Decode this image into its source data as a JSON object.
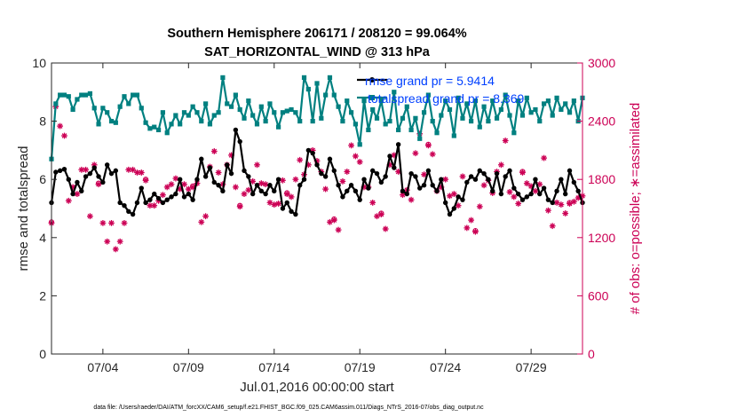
{
  "chart_data": {
    "type": "line",
    "title": "Southern Hemisphere 206171 / 208120 = 99.064%",
    "subtitle": "SAT_HORIZONTAL_WIND @ 313 hPa",
    "xlabel": "Jul.01,2016 00:00:00 start",
    "ylabel_left": "rmse and totalspread",
    "ylabel_right": "# of obs: o=possible; ∗=assimilated",
    "footer": "data file: /Users/raeder/DAI/ATM_forcXX/CAM6_setup/f.e21.FHIST_BGC.f09_025.CAM6assim.011/Diags_NTrS_2016-07/obs_diag_output.nc",
    "x_range": [
      1,
      32
    ],
    "ylim_left": [
      0,
      10
    ],
    "ylim_right": [
      0,
      3000
    ],
    "grid": false,
    "legend_position": "top-right",
    "x_ticks": [
      {
        "day": 4,
        "label": "07/04"
      },
      {
        "day": 9,
        "label": "07/09"
      },
      {
        "day": 14,
        "label": "07/14"
      },
      {
        "day": 19,
        "label": "07/19"
      },
      {
        "day": 24,
        "label": "07/24"
      },
      {
        "day": 29,
        "label": "07/29"
      }
    ],
    "left_ticks": [
      {
        "value": 0,
        "label": "0"
      },
      {
        "value": 2,
        "label": "2"
      },
      {
        "value": 4,
        "label": "4"
      },
      {
        "value": 6,
        "label": "6"
      },
      {
        "value": 8,
        "label": "8"
      },
      {
        "value": 10,
        "label": "10"
      }
    ],
    "right_ticks": [
      {
        "value": 0,
        "label": "0"
      },
      {
        "value": 600,
        "label": "600"
      },
      {
        "value": 1200,
        "label": "1200"
      },
      {
        "value": 1800,
        "label": "1800"
      },
      {
        "value": 2400,
        "label": "2400"
      },
      {
        "value": 3000,
        "label": "3000"
      }
    ],
    "x_start": 1,
    "x_step": 0.25,
    "colors": {
      "rmse": "#000000",
      "spread": "#008080",
      "obs": "#cc0055",
      "legend_text": "#0040ff"
    },
    "series": [
      {
        "name": "rmse grand pr = 5.9414",
        "axis": "left",
        "marker": "circle",
        "values": [
          5.2,
          6.25,
          6.3,
          6.35,
          6.0,
          5.5,
          5.9,
          5.6,
          6.1,
          6.2,
          6.4,
          6.1,
          5.9,
          6.5,
          6.2,
          6.3,
          5.2,
          5.1,
          4.9,
          4.8,
          5.2,
          5.7,
          5.2,
          5.3,
          5.5,
          5.35,
          5.2,
          5.3,
          5.4,
          5.5,
          6.0,
          5.4,
          5.5,
          5.3,
          6.0,
          6.7,
          6.1,
          6.4,
          5.9,
          5.8,
          5.6,
          6.5,
          6.2,
          7.7,
          7.3,
          6.3,
          6.1,
          5.5,
          5.8,
          5.6,
          5.5,
          5.8,
          5.6,
          6.0,
          5.0,
          5.2,
          4.9,
          4.8,
          5.8,
          6.0,
          7.0,
          6.9,
          6.5,
          6.2,
          6.1,
          6.7,
          6.3,
          5.8,
          5.4,
          5.6,
          5.8,
          5.6,
          5.3,
          6.0,
          5.7,
          6.3,
          6.2,
          5.9,
          6.1,
          6.8,
          6.4,
          7.2,
          5.6,
          5.5,
          6.2,
          6.1,
          5.7,
          5.8,
          6.3,
          5.8,
          5.6,
          6.0,
          5.2,
          4.8,
          5.0,
          5.4,
          5.3,
          5.9,
          6.1,
          6.0,
          6.3,
          6.2,
          6.0,
          5.6,
          6.2,
          5.5,
          6.1,
          6.3,
          5.7,
          5.5,
          5.3,
          5.4,
          5.5,
          6.0,
          5.5,
          5.7,
          5.3,
          5.2,
          5.6,
          6.0,
          5.5,
          6.3,
          5.9,
          5.6,
          5.2,
          6.0,
          6.2,
          6.0,
          6.5,
          5.6,
          5.7,
          6.3,
          5.7,
          5.9,
          6.0,
          6.5,
          6.1,
          6.6,
          6.2,
          5.8,
          6.2,
          5.9,
          5.5,
          5.7,
          6.1,
          5.9,
          6.4,
          6.2,
          5.9,
          6.0,
          6.4,
          6.5,
          6.3,
          6.8,
          6.5,
          6.2,
          6.6,
          6.4,
          5.9,
          5.4,
          6.0,
          5.7,
          6.2,
          6.5,
          6.4,
          6.8,
          6.2,
          6.5,
          6.5,
          6.7,
          6.8,
          6.6,
          6.3,
          6.7,
          6.4,
          6.6,
          6.2,
          6.7,
          6.5,
          6.8,
          6.7,
          6.6,
          6.4,
          6.8,
          6.7,
          6.5,
          6.6,
          6.3,
          6.7,
          6.6,
          6.4
        ]
      },
      {
        "name": "totalspread grand pr = 8.369",
        "axis": "left",
        "marker": "square",
        "values": [
          6.7,
          8.6,
          8.9,
          8.9,
          8.85,
          8.4,
          8.75,
          8.9,
          8.9,
          8.95,
          8.45,
          7.9,
          8.45,
          8.3,
          8.0,
          7.95,
          8.5,
          8.85,
          8.6,
          8.9,
          8.9,
          8.45,
          7.95,
          7.75,
          7.8,
          7.7,
          8.3,
          7.6,
          7.9,
          8.2,
          7.9,
          8.3,
          8.2,
          8.5,
          8.3,
          8.0,
          8.6,
          7.9,
          8.2,
          8.3,
          9.5,
          8.6,
          8.5,
          8.9,
          8.4,
          8.1,
          8.7,
          8.2,
          7.9,
          8.5,
          8.0,
          8.6,
          8.3,
          7.8,
          8.3,
          8.35,
          8.4,
          8.3,
          8.0,
          9.5,
          9.1,
          8.0,
          9.3,
          8.1,
          8.9,
          9.5,
          8.9,
          8.5,
          8.0,
          8.7,
          8.3,
          7.9,
          7.2,
          8.7,
          7.7,
          8.4,
          8.1,
          8.7,
          7.9,
          8.0,
          9.0,
          7.7,
          8.1,
          8.5,
          7.7,
          8.1,
          7.4,
          8.3,
          8.9,
          8.0,
          7.6,
          8.2,
          8.7,
          8.4,
          7.5,
          8.8,
          8.1,
          8.6,
          8.0,
          8.7,
          7.8,
          8.5,
          8.0,
          8.7,
          8.1,
          8.4,
          8.9,
          8.2,
          7.6,
          8.7,
          8.2,
          8.8,
          8.3,
          8.4,
          8.0,
          8.6,
          8.7,
          8.2,
          8.8,
          8.4,
          8.6,
          8.3,
          8.7,
          8.0,
          8.8,
          7.8,
          8.5,
          8.3,
          8.7,
          8.6,
          8.2,
          8.8,
          8.1,
          8.5,
          8.9,
          7.2,
          8.0,
          8.6,
          9.0,
          7.8,
          8.7,
          8.4,
          7.5,
          8.8,
          8.3,
          8.6,
          8.1,
          8.7,
          7.9,
          8.4,
          8.8,
          8.2,
          8.5,
          7.4,
          8.6,
          8.0,
          8.9,
          8.3,
          8.8,
          8.4,
          8.5,
          8.2,
          8.6,
          8.3,
          8.7,
          8.1,
          8.5,
          8.8,
          8.0,
          8.4,
          8.6,
          7.8,
          8.3,
          8.5,
          8.1,
          8.7,
          8.4,
          8.2,
          7.3,
          8.0,
          8.5,
          7.7,
          8.4,
          8.7,
          8.8,
          8.6,
          8.3,
          8.7,
          8.5,
          8.6,
          8.8,
          8.4
        ]
      },
      {
        "name": "obs assimilated",
        "axis": "right",
        "marker": "asterisk",
        "values": [
          1350,
          2550,
          2350,
          2250,
          1580,
          1720,
          1650,
          1900,
          1900,
          1420,
          1950,
          1750,
          1350,
          1160,
          1350,
          1080,
          1160,
          1350,
          1900,
          1900,
          1870,
          1870,
          1790,
          1530,
          1530,
          1580,
          1640,
          1720,
          1750,
          1810,
          1700,
          1750,
          1700,
          1720,
          1760,
          1360,
          1420,
          1930,
          2090,
          1870,
          1750,
          1950,
          2050,
          1720,
          1520,
          1650,
          1690,
          1780,
          1950,
          1760,
          1750,
          1560,
          1540,
          1550,
          1790,
          1650,
          1620,
          1800,
          2000,
          1850,
          1950,
          2100,
          1990,
          1880,
          1700,
          1360,
          1380,
          1280,
          1780,
          1880,
          2150,
          2040,
          1980,
          1720,
          1720,
          1560,
          1420,
          1440,
          1290,
          1950,
          2050,
          1880,
          1640,
          1690,
          1590,
          2070,
          2270,
          1850,
          2150,
          2060,
          1680,
          1720,
          1800,
          1630,
          1650,
          1530,
          1830,
          1300,
          1380,
          1260,
          1520,
          1740,
          1790,
          1660,
          1880,
          1950,
          2200,
          1670,
          1620,
          1550,
          1870,
          1760,
          1730,
          1680,
          1750,
          2020,
          1480,
          1320,
          1560,
          1540,
          1450,
          1550,
          1570,
          1610,
          1630,
          1660,
          1790,
          1380,
          1530,
          1850,
          1700,
          1760,
          1670,
          1710,
          1550,
          1620,
          1520,
          1520,
          1700,
          1680,
          1730,
          1630,
          1580,
          1540,
          1560,
          1860,
          1790,
          1700,
          1590,
          1620,
          1640,
          1610,
          1550,
          1500,
          1560,
          1520,
          1620,
          1660,
          1620,
          1690,
          1700,
          1670,
          1720,
          1740,
          1710,
          1700,
          1680,
          1640,
          1590,
          1660,
          1690,
          1670,
          1710,
          1750,
          1690,
          1720,
          1730,
          1690,
          1650,
          1640,
          1700,
          1620,
          1660,
          1710,
          1780,
          1760,
          1730,
          1750,
          1690,
          1720,
          1770,
          1740,
          1810,
          1800,
          1750,
          1790,
          1700
        ]
      },
      {
        "name": "obs possible",
        "axis": "right",
        "marker": "circle-open",
        "values": [
          1360,
          2560,
          2360,
          2260,
          1590,
          1730,
          1660,
          1910,
          1910,
          1430,
          1960,
          1760,
          1360,
          1170,
          1360,
          1090,
          1170,
          1360,
          1910,
          1910,
          1880,
          1880,
          1800,
          1540,
          1540,
          1590,
          1650,
          1730,
          1760,
          1820,
          1710,
          1760,
          1710,
          1730,
          1770,
          1370,
          1430,
          1940,
          2100,
          1880,
          1760,
          1960,
          2060,
          1730,
          1530,
          1660,
          1700,
          1790,
          1960,
          1770,
          1760,
          1570,
          1550,
          1560,
          1800,
          1660,
          1630,
          1810,
          2010,
          1860,
          1960,
          2110,
          2000,
          1890,
          1710,
          1370,
          1390,
          1290,
          1790,
          1890,
          2160,
          2050,
          1990,
          1730,
          1730,
          1570,
          1430,
          1450,
          1300,
          1960,
          2060,
          1890,
          1650,
          1700,
          1600,
          2080,
          2280,
          1860,
          2160,
          2070,
          1690,
          1730,
          1810,
          1640,
          1660,
          1540,
          1840,
          1310,
          1390,
          1270,
          1530,
          1750,
          1800,
          1670,
          1890,
          1960,
          2210,
          1680,
          1630,
          1560,
          1880,
          1770,
          1740,
          1690,
          1760,
          2030,
          1490,
          1330,
          1570,
          1550,
          1460,
          1560,
          1580,
          1620,
          1640,
          1670,
          1800,
          1390,
          1540,
          1860,
          1710,
          1770,
          1680,
          1720,
          1560,
          1630,
          1530,
          1530,
          1710,
          1690,
          1740,
          1640,
          1590,
          1550,
          1570,
          1870,
          1800,
          1710,
          1600,
          1630,
          1650,
          1620,
          1560,
          1510,
          1570,
          1530,
          1630,
          1670,
          1630,
          1700,
          1710,
          1680,
          1730,
          1750,
          1720,
          1710,
          1690,
          1650,
          1600,
          1670,
          1700,
          1680,
          1720,
          1760,
          1700,
          1730,
          1740,
          1700,
          1660,
          1650,
          1710,
          1630,
          1670,
          1720,
          1790,
          1770,
          1740,
          1760,
          1700,
          1730,
          1780,
          1750,
          1820,
          1810,
          1760,
          1800,
          1710
        ]
      }
    ]
  }
}
